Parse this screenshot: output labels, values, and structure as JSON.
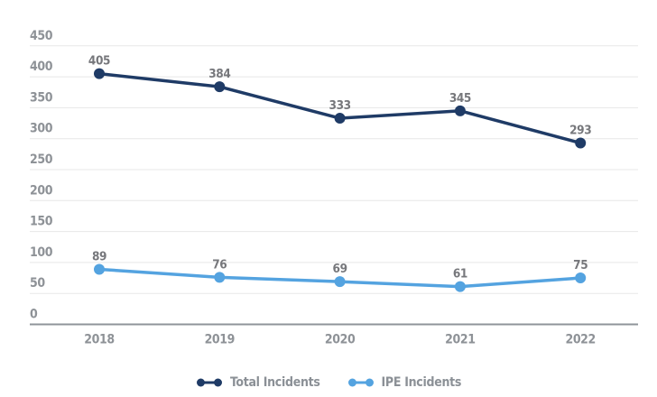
{
  "chart_data": {
    "type": "line",
    "title": "",
    "xlabel": "",
    "ylabel": "",
    "x": [
      "2018",
      "2019",
      "2020",
      "2021",
      "2022"
    ],
    "series": [
      {
        "name": "Total Incidents",
        "values": [
          405,
          384,
          333,
          345,
          293
        ],
        "color": "#1f3b66"
      },
      {
        "name": "IPE Incidents",
        "values": [
          89,
          76,
          69,
          61,
          75
        ],
        "color": "#54a3e0"
      }
    ],
    "ylim": [
      0,
      450
    ],
    "yticks": [
      0,
      50,
      100,
      150,
      200,
      250,
      300,
      350,
      400,
      450
    ],
    "grid": true,
    "legend_position": "bottom"
  },
  "colors": {
    "background": "#ffffff",
    "grid": "#e7e7e7",
    "axis": "#8f949a",
    "tick_label": "#8e9297",
    "data_label": "#76777b",
    "legend_text": "#8b9096"
  }
}
